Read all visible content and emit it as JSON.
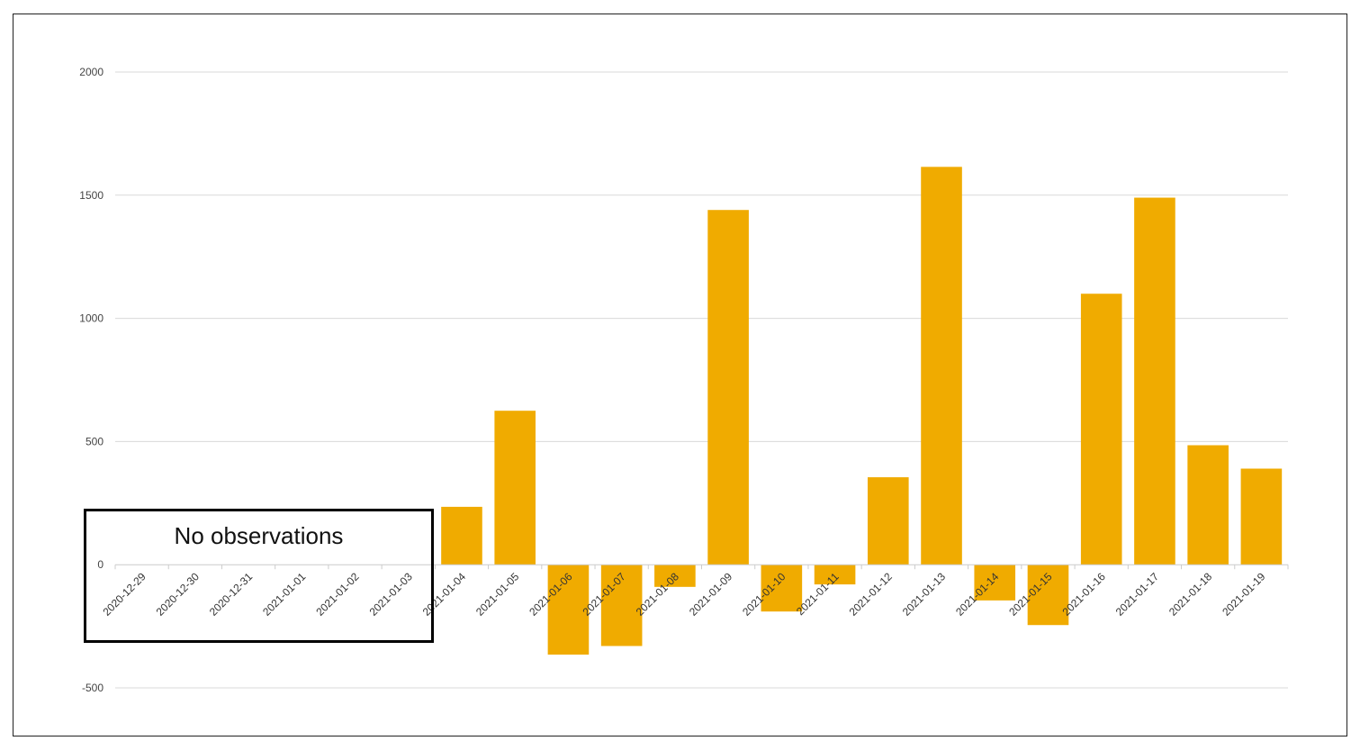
{
  "chart_data": {
    "type": "bar",
    "categories": [
      "2020-12-29",
      "2020-12-30",
      "2020-12-31",
      "2021-01-01",
      "2021-01-02",
      "2021-01-03",
      "2021-01-04",
      "2021-01-05",
      "2021-01-06",
      "2021-01-07",
      "2021-01-08",
      "2021-01-09",
      "2021-01-10",
      "2021-01-11",
      "2021-01-12",
      "2021-01-13",
      "2021-01-14",
      "2021-01-15",
      "2021-01-16",
      "2021-01-17",
      "2021-01-18",
      "2021-01-19"
    ],
    "values": [
      null,
      null,
      null,
      null,
      null,
      null,
      235,
      625,
      -365,
      -330,
      -90,
      1440,
      -190,
      -80,
      355,
      1615,
      -145,
      -245,
      1100,
      1490,
      485,
      390
    ],
    "ylim": [
      -500,
      2000
    ],
    "yticks": [
      -500,
      0,
      500,
      1000,
      1500,
      2000
    ],
    "ytick_labels": [
      "-500",
      "0",
      "500",
      "1000",
      "1500",
      "2000"
    ],
    "grid": true,
    "bar_color": "#F0AB00",
    "annotation": "No observations"
  }
}
